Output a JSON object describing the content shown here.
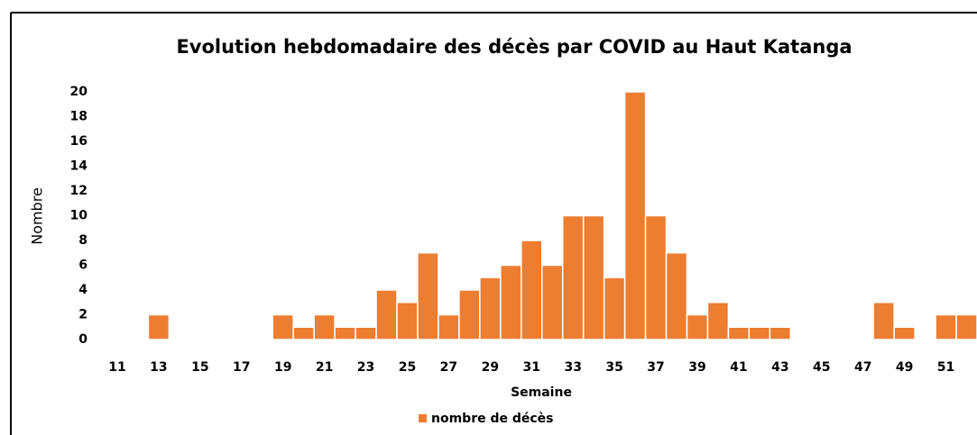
{
  "chart_data": {
    "type": "bar",
    "title": "Evolution hebdomadaire des décès par COVID au Haut Katanga",
    "x_label": "Semaine",
    "y_label": "Nombre",
    "categories": [
      11,
      null,
      13,
      null,
      15,
      null,
      17,
      null,
      19,
      null,
      21,
      null,
      23,
      null,
      25,
      null,
      27,
      null,
      29,
      null,
      31,
      null,
      33,
      null,
      35,
      null,
      37,
      null,
      39,
      null,
      41,
      null,
      43,
      null,
      45,
      null,
      47,
      null,
      49,
      null,
      51,
      null
    ],
    "series": [
      {
        "name": "nombre de décès",
        "color": "#ed7d31",
        "values": [
          0,
          0,
          2,
          0,
          0,
          0,
          0,
          0,
          2,
          1,
          2,
          1,
          1,
          4,
          3,
          7,
          2,
          4,
          5,
          6,
          8,
          6,
          10,
          10,
          5,
          20,
          10,
          7,
          2,
          3,
          1,
          1,
          1,
          0,
          0,
          0,
          0,
          3,
          1,
          0,
          2,
          2
        ]
      }
    ],
    "ylim": [
      0,
      20
    ],
    "yticks": [
      0,
      2,
      4,
      6,
      8,
      10,
      12,
      14,
      16,
      18,
      20
    ],
    "legend": "bottom"
  }
}
